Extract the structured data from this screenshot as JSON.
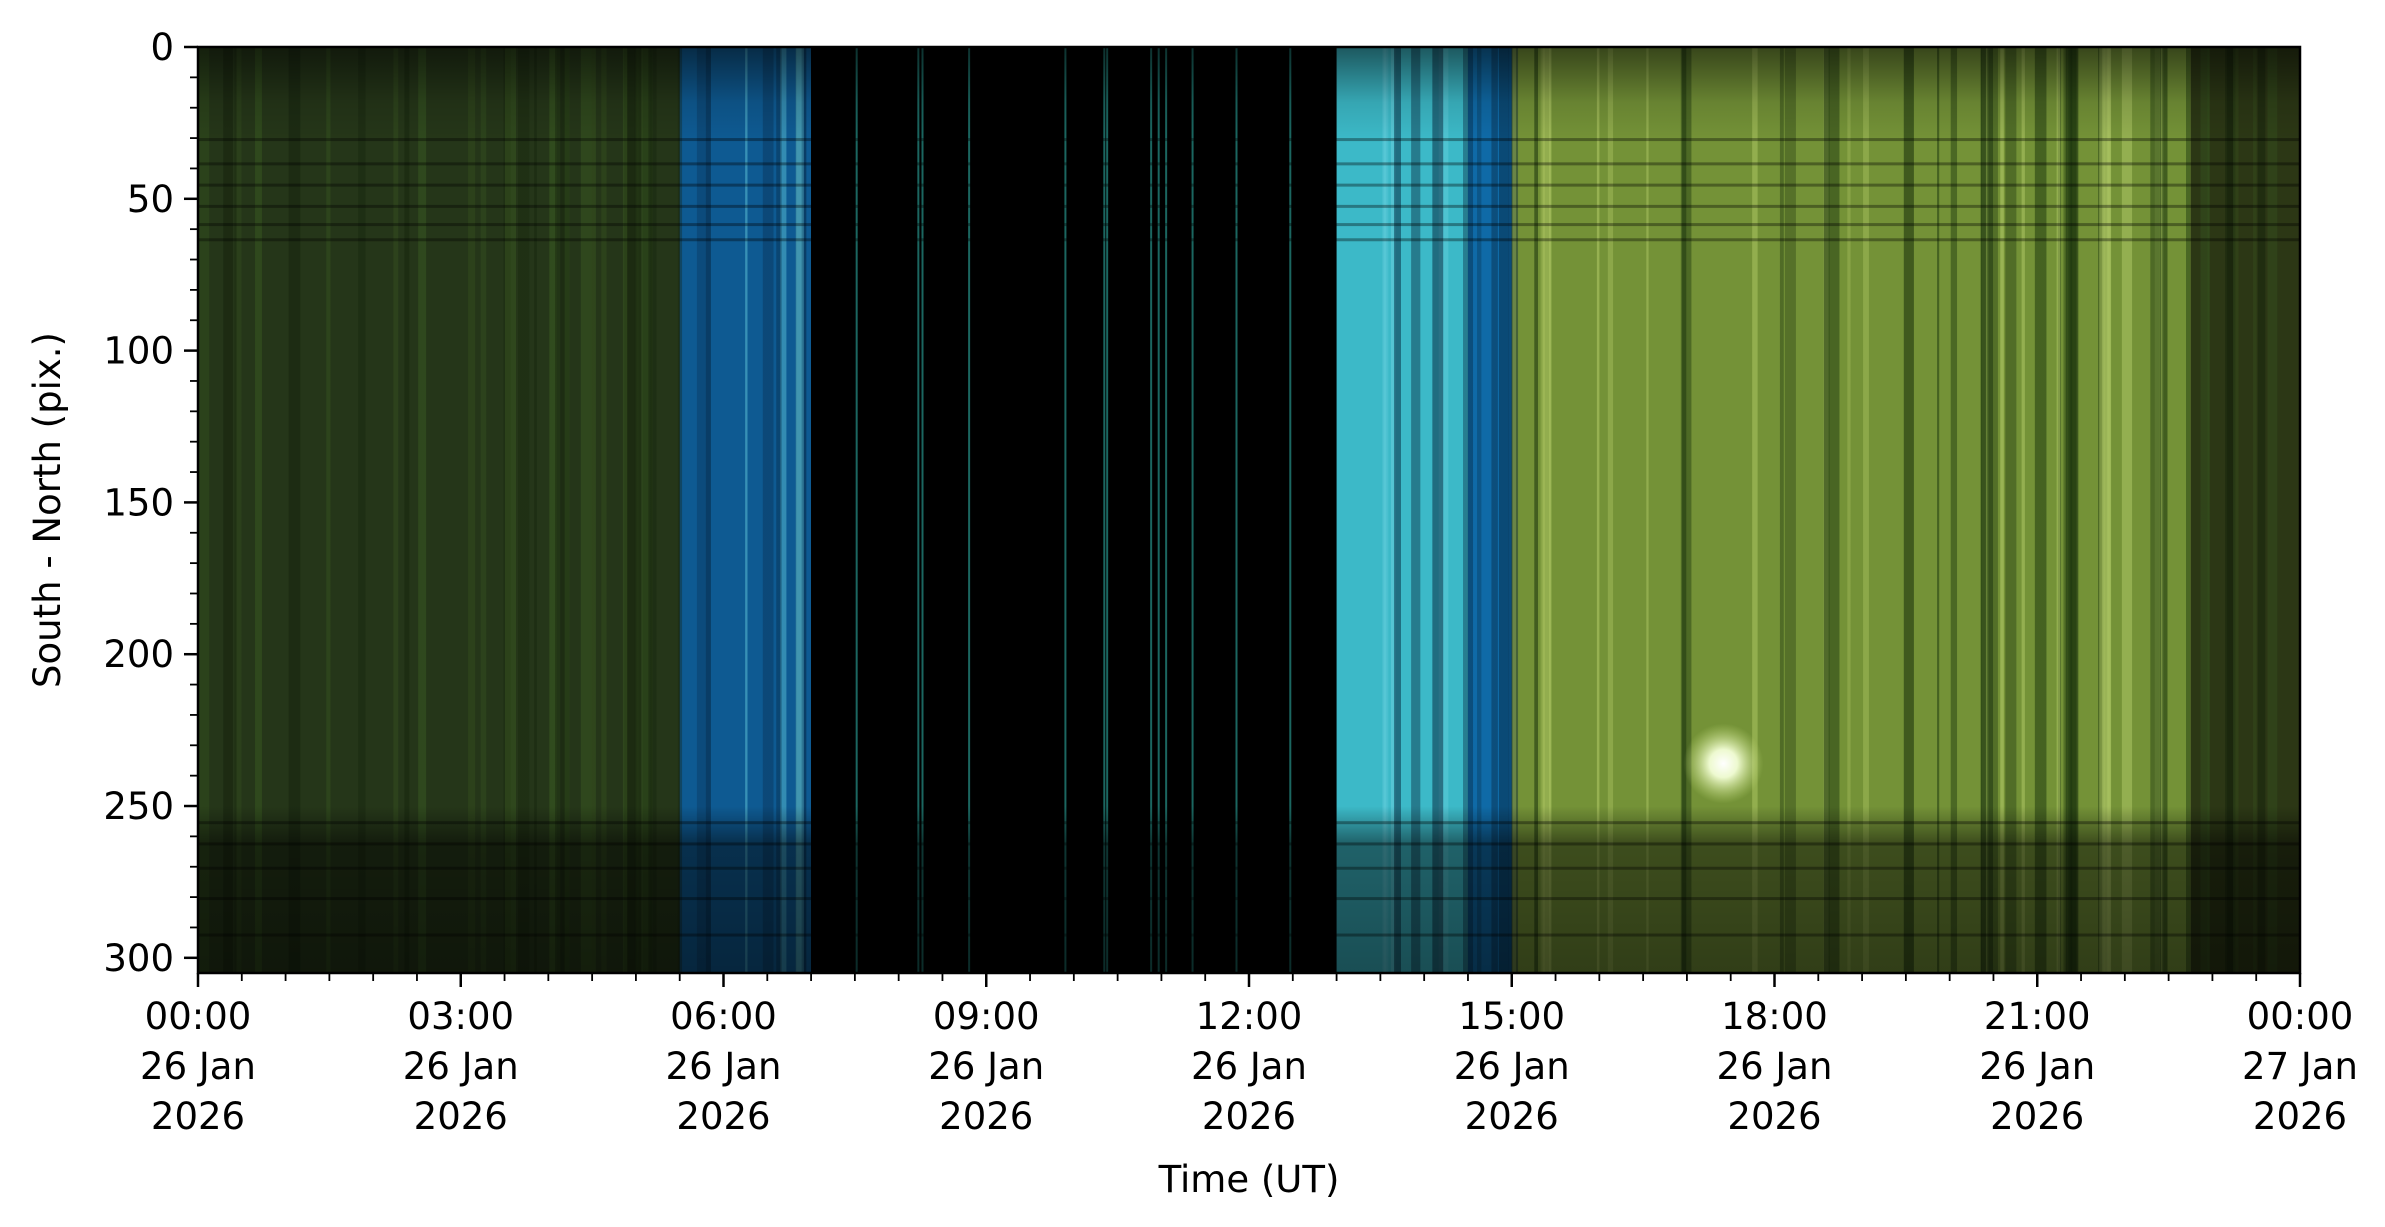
{
  "chart_data": {
    "type": "heatmap",
    "title": "",
    "xlabel": "Time (UT)",
    "ylabel": "South - North (pix.)",
    "xlim": [
      "2026-01-26 00:00",
      "2026-01-27 00:00"
    ],
    "ylim": [
      305,
      0
    ],
    "grid": false,
    "x_ticks": [
      {
        "time": "2026-01-26 00:00",
        "lines": [
          "00:00",
          "26 Jan",
          "2026"
        ]
      },
      {
        "time": "2026-01-26 03:00",
        "lines": [
          "03:00",
          "26 Jan",
          "2026"
        ]
      },
      {
        "time": "2026-01-26 06:00",
        "lines": [
          "06:00",
          "26 Jan",
          "2026"
        ]
      },
      {
        "time": "2026-01-26 09:00",
        "lines": [
          "09:00",
          "26 Jan",
          "2026"
        ]
      },
      {
        "time": "2026-01-26 12:00",
        "lines": [
          "12:00",
          "26 Jan",
          "2026"
        ]
      },
      {
        "time": "2026-01-26 15:00",
        "lines": [
          "15:00",
          "26 Jan",
          "2026"
        ]
      },
      {
        "time": "2026-01-26 18:00",
        "lines": [
          "18:00",
          "26 Jan",
          "2026"
        ]
      },
      {
        "time": "2026-01-26 21:00",
        "lines": [
          "21:00",
          "26 Jan",
          "2026"
        ]
      },
      {
        "time": "2026-01-27 00:00",
        "lines": [
          "00:00",
          "27 Jan",
          "2026"
        ]
      }
    ],
    "y_ticks": [
      0,
      50,
      100,
      150,
      200,
      250,
      300
    ],
    "features": [
      {
        "start": "2026-01-26 00:00",
        "end": "2026-01-26 05:30",
        "kind": "dim-green",
        "color": "#27391a"
      },
      {
        "start": "2026-01-26 05:30",
        "end": "2026-01-26 07:00",
        "kind": "blue",
        "color": "#0f5f9a"
      },
      {
        "start": "2026-01-26 07:00",
        "end": "2026-01-26 13:00",
        "kind": "dark",
        "color": "#000000"
      },
      {
        "start": "2026-01-26 13:00",
        "end": "2026-01-26 14:30",
        "kind": "cyan",
        "color": "#3fc3d2"
      },
      {
        "start": "2026-01-26 14:30",
        "end": "2026-01-26 15:00",
        "kind": "blue",
        "color": "#1070b0"
      },
      {
        "start": "2026-01-26 15:00",
        "end": "2026-01-26 22:45",
        "kind": "bright-green",
        "color": "#7a9a3a"
      },
      {
        "start": "2026-01-26 22:45",
        "end": "2026-01-27 00:00",
        "kind": "dim-green",
        "color": "#2e3a16"
      }
    ],
    "bright_spot": {
      "time": "2026-01-26 17:25",
      "y": 236,
      "color": "#fafff0"
    }
  }
}
